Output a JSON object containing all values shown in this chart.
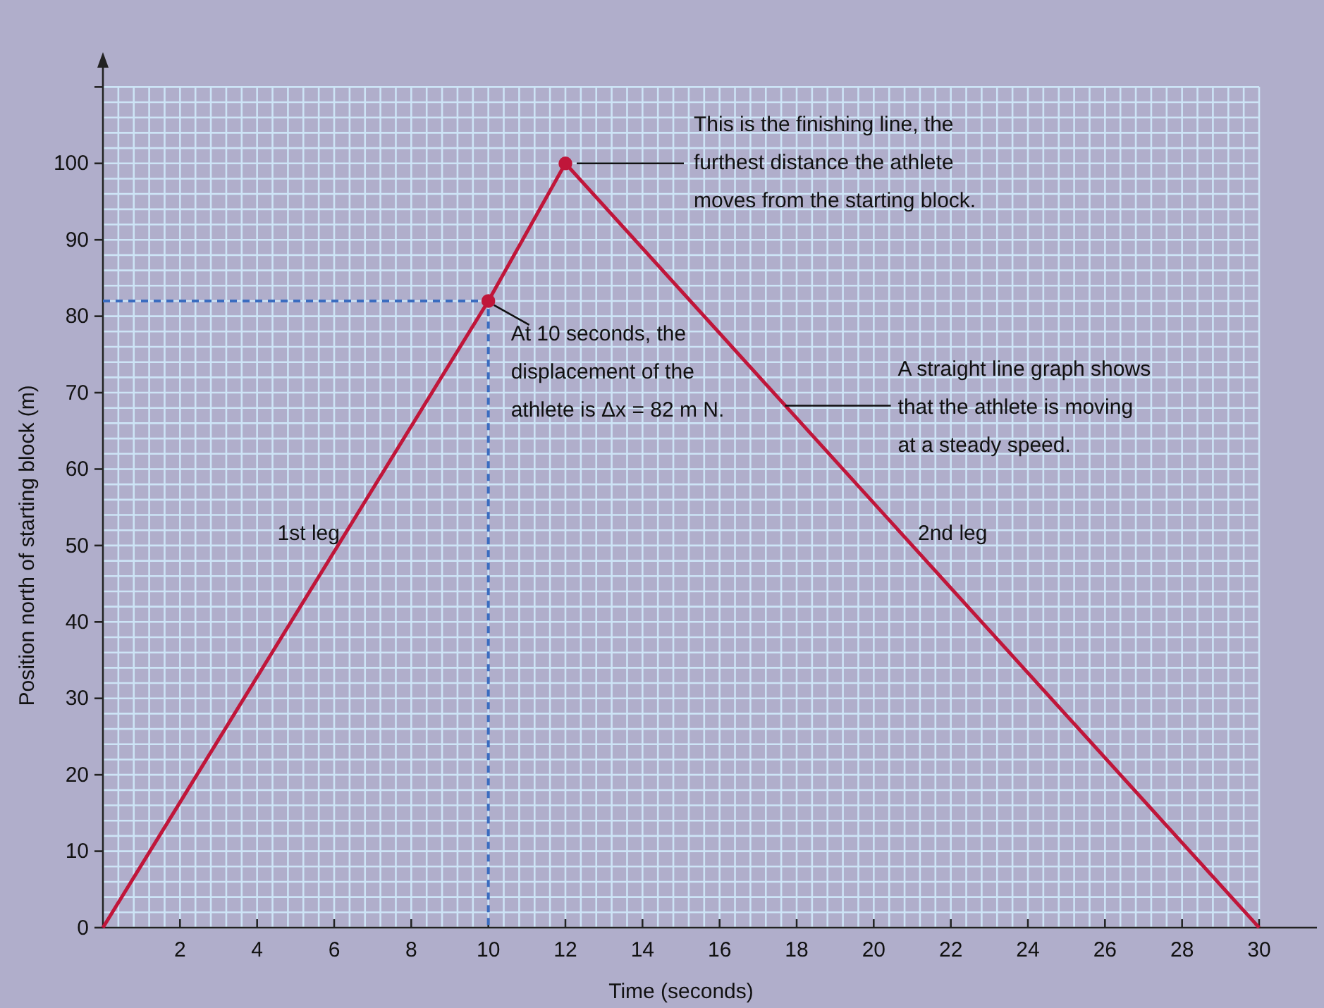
{
  "chart_data": {
    "type": "line",
    "xlabel": "Time (seconds)",
    "ylabel": "Position north of starting block (m)",
    "xlim": [
      0,
      31.5
    ],
    "ylim": [
      0,
      114
    ],
    "xticks": [
      2,
      4,
      6,
      8,
      10,
      12,
      14,
      16,
      18,
      20,
      22,
      24,
      26,
      28,
      30
    ],
    "yticks": [
      0,
      10,
      20,
      30,
      40,
      50,
      60,
      70,
      80,
      90,
      100,
      {
        "value": 110,
        "label": null
      }
    ],
    "grid": true,
    "marker": "none",
    "series": [
      {
        "color": "#c0163a",
        "x": [
          0,
          10,
          12,
          30
        ],
        "values": [
          0,
          82,
          100,
          0
        ]
      },
      {
        "type": "line",
        "color": "#3a6cc0",
        "line_style": "dashed",
        "x": [
          0,
          10,
          10
        ],
        "values": [
          82,
          82,
          0
        ]
      },
      {
        "type": "scatter",
        "color": "#c0163a",
        "marker": "circle",
        "x": [
          10,
          12
        ],
        "values": [
          82,
          100
        ]
      }
    ],
    "annotations": [
      {
        "text": "This is the finishing line, the\nfurthest distance the athlete\nmoves from the starting block.",
        "x": 12,
        "y": 100
      },
      {
        "text": "At 10 seconds, the\ndisplacement of the\nathlete is Δx = 82 m N.",
        "x": 10,
        "y": 82
      },
      {
        "text": "A straight line graph shows\nthat the athlete is moving\nat a steady speed.",
        "x": 17.7,
        "y": 68.3
      },
      "1st leg",
      "2nd leg"
    ]
  }
}
